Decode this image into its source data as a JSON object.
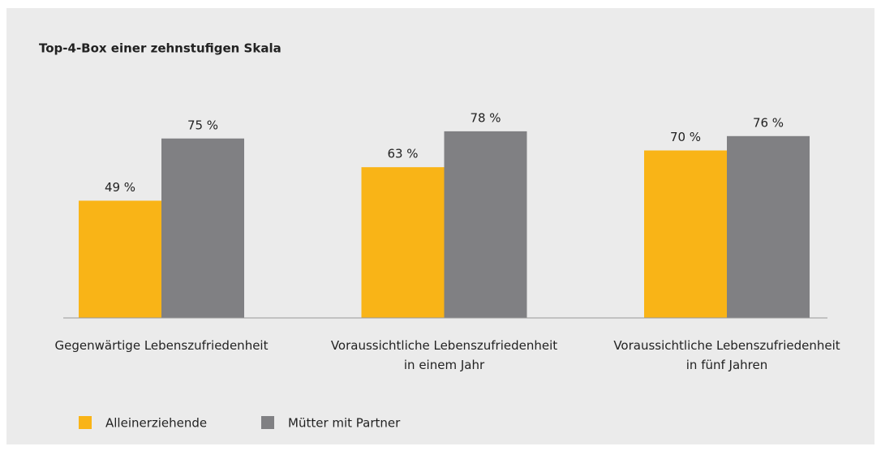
{
  "chart_data": {
    "type": "bar",
    "title": "Top-4-Box einer zehnstufigen Skala",
    "categories": [
      "Gegenwärtige Lebenszufriedenheit",
      "Voraussichtliche Lebenszufriedenheit\nin einem Jahr",
      "Voraussichtliche Lebenszufriedenheit\nin fünf Jahren"
    ],
    "series": [
      {
        "name": "Alleinerziehende",
        "color": "#f9b417",
        "values": [
          49,
          63,
          70
        ],
        "value_labels": [
          "49 %",
          "63 %",
          "70 %"
        ]
      },
      {
        "name": "Mütter mit Partner",
        "color": "#808083",
        "values": [
          75,
          78,
          76
        ],
        "value_labels": [
          "75 %",
          "78 %",
          "76 %"
        ]
      }
    ],
    "ylim": [
      0,
      100
    ],
    "grid": false
  }
}
